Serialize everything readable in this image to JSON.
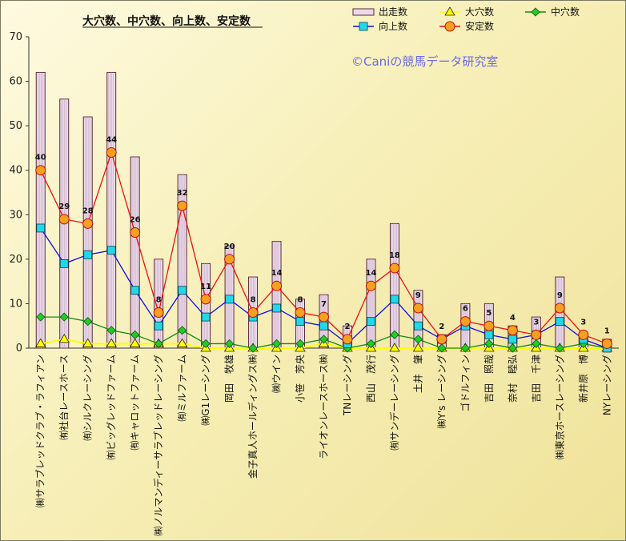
{
  "chart_data": {
    "type": "bar",
    "title": "大穴数、中穴数、向上数、安定数",
    "watermark": "©Caniの競馬データ研究室",
    "ylim": [
      0,
      70
    ],
    "yticks": [
      0,
      10,
      20,
      30,
      40,
      50,
      60,
      70
    ],
    "legend_placement": "top-right",
    "grid": false,
    "categories": [
      "㈱サラブレッドクラブ・ラフィアン",
      "㈲社台レースホース",
      "㈲シルクレーシング",
      "㈲ビッグレッドファーム",
      "㈲キャロットファーム",
      "㈱ノルマンディーサラブレッドレーシング",
      "㈲ミルファーム",
      "㈱G1レーシング",
      "岡田　牧雄",
      "金子真人ホールディングス㈱",
      "㈱ウイン",
      "小笹　芳央",
      "ライオンレースホース㈱",
      "TNレーシング",
      "西山　茂行",
      "㈲サンデーレーシング",
      "土井　肇",
      "㈱Y's レーシング",
      "ゴドルフィン",
      "吉田　照哉",
      "奈村　睦弘",
      "吉田　千津",
      "㈱東京ホースレーシング",
      "新井原　博",
      "NYレーシング"
    ],
    "series": [
      {
        "name": "出走数",
        "kind": "bar",
        "color": "#eadaea",
        "values": [
          62,
          56,
          52,
          62,
          43,
          20,
          39,
          19,
          23,
          16,
          24,
          11,
          12,
          5,
          20,
          28,
          13,
          3,
          10,
          10,
          5,
          7,
          16,
          3,
          2
        ]
      },
      {
        "name": "大穴数",
        "kind": "line",
        "color": "#ffff00",
        "marker": "triangle",
        "values": [
          1,
          2,
          1,
          1,
          1,
          1,
          1,
          0,
          0,
          0,
          0,
          0,
          1,
          0,
          0,
          0,
          0,
          0,
          0,
          0,
          0,
          0,
          0,
          0,
          0
        ]
      },
      {
        "name": "中穴数",
        "kind": "line",
        "color": "#108a10",
        "marker": "diamond",
        "values": [
          7,
          7,
          6,
          4,
          3,
          1,
          4,
          1,
          1,
          0,
          1,
          1,
          2,
          0,
          1,
          3,
          2,
          0,
          0,
          1,
          0,
          1,
          0,
          1,
          0
        ]
      },
      {
        "name": "向上数",
        "kind": "line",
        "color": "#1010e0",
        "marker": "square",
        "values": [
          27,
          19,
          21,
          22,
          13,
          5,
          13,
          7,
          11,
          7,
          9,
          6,
          5,
          1,
          6,
          11,
          5,
          2,
          5,
          3,
          2,
          3,
          6,
          2,
          0
        ]
      },
      {
        "name": "安定数",
        "kind": "line",
        "color": "#ee1010",
        "marker": "circle",
        "values": [
          40,
          29,
          28,
          44,
          26,
          8,
          32,
          11,
          20,
          8,
          14,
          8,
          7,
          2,
          14,
          18,
          9,
          2,
          6,
          5,
          4,
          3,
          9,
          3,
          1
        ]
      }
    ]
  }
}
